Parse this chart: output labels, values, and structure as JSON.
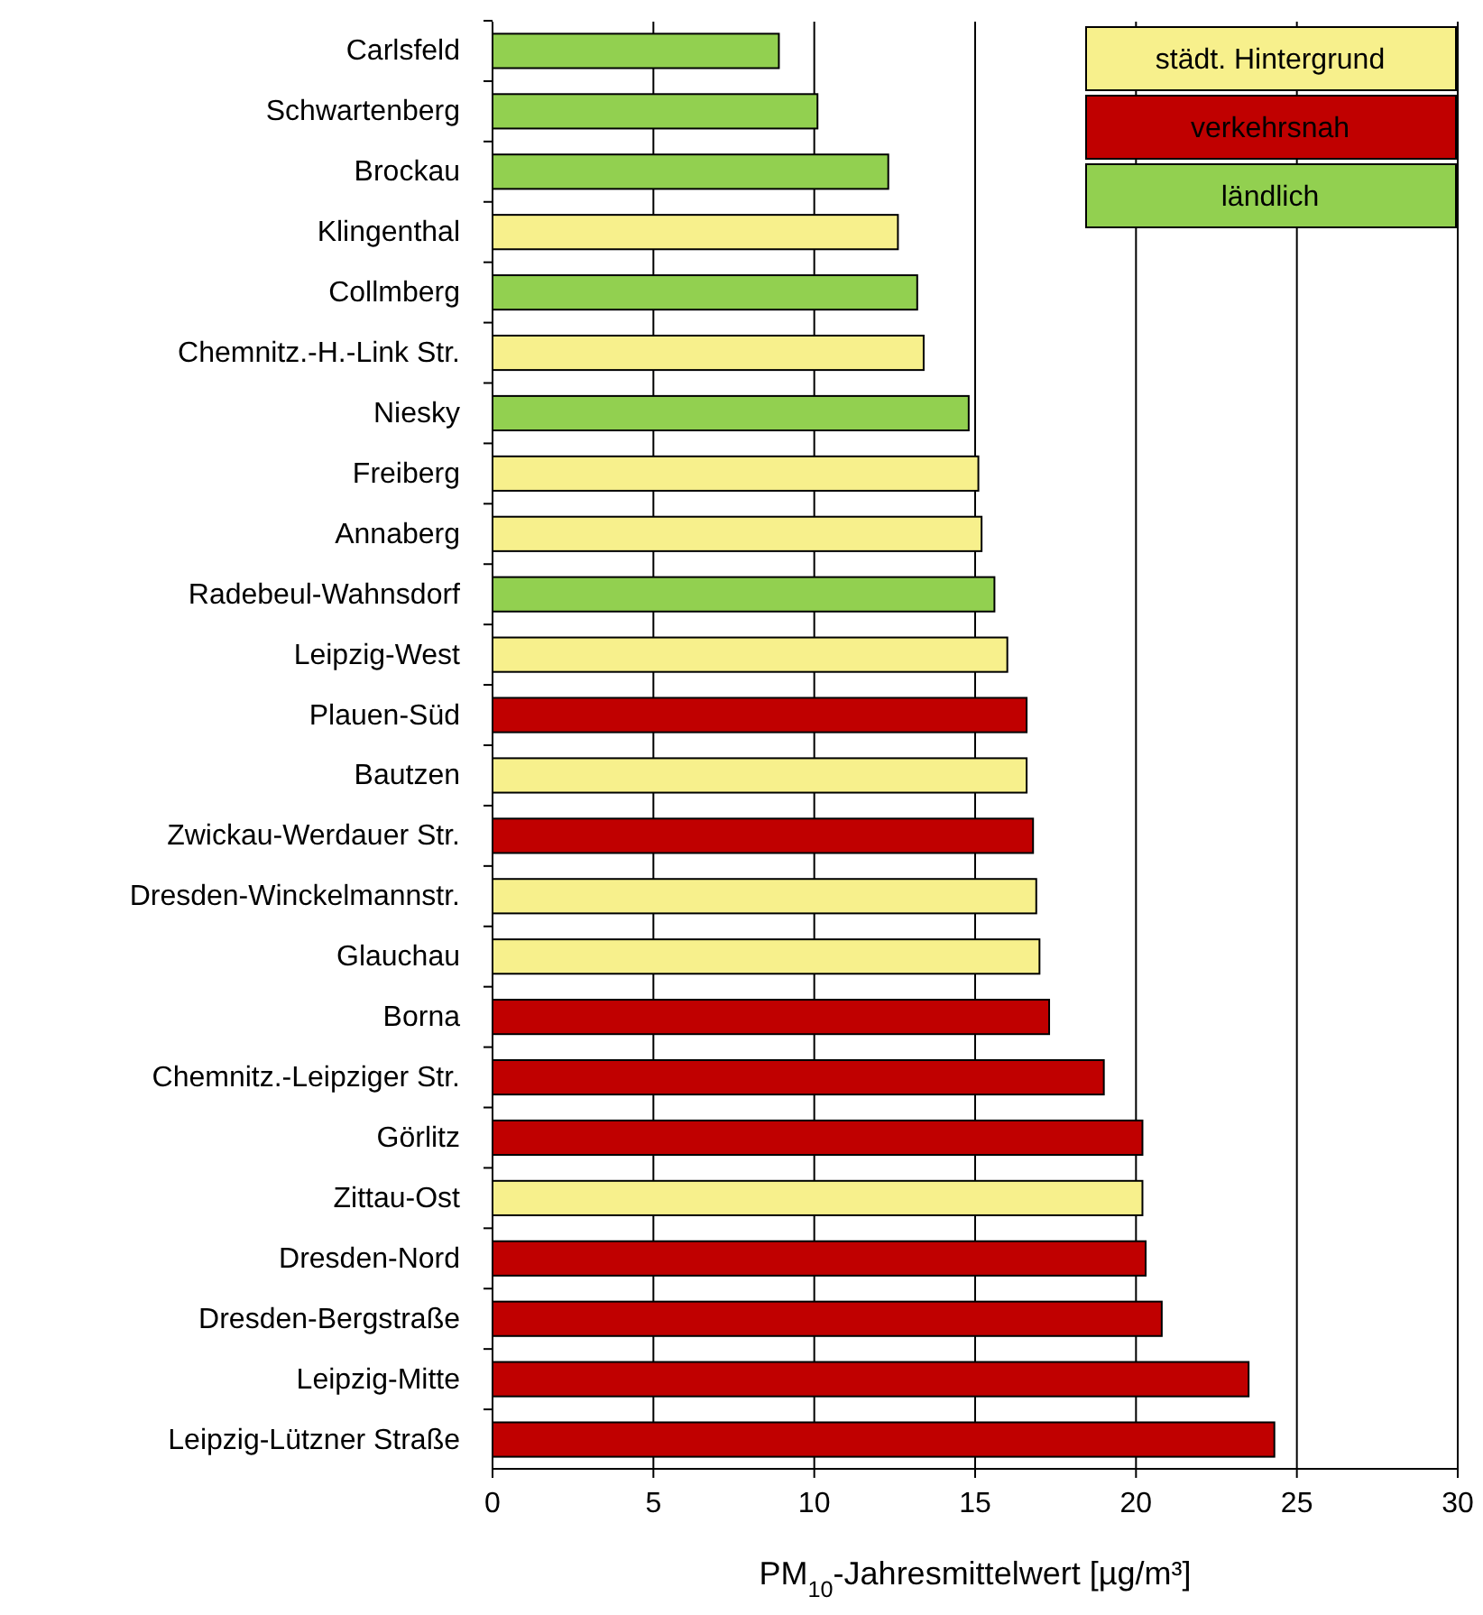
{
  "chart_data": {
    "type": "bar",
    "orientation": "horizontal",
    "stacked": true,
    "xlabel": "PM$_{10}$-Jahresmittelwert [µg/m³]",
    "categories": [
      "Carlsfeld",
      "Schwartenberg",
      "Brockau",
      "Klingenthal",
      "Collmberg",
      "Chemnitz.-H.-Link Str.",
      "Niesky",
      "Freiberg",
      "Annaberg",
      "Radebeul-Wahnsdorf",
      "Leipzig-West",
      "Plauen-Süd",
      "Bautzen",
      "Zwickau-Werdauer Str.",
      "Dresden-Winckelmannstr.",
      "Glauchau",
      "Borna",
      "Chemnitz.-Leipziger Str.",
      "Görlitz",
      "Zittau-Ost",
      "Dresden-Nord",
      "Dresden-Bergstraße",
      "Leipzig-Mitte",
      "Leipzig-Lützner Straße"
    ],
    "series": [
      {
        "name": "städt. Hintergrund",
        "color": "#f7f08c",
        "values": [
          null,
          null,
          null,
          12.6,
          null,
          13.4,
          null,
          15.1,
          15.2,
          null,
          16.0,
          null,
          16.6,
          null,
          16.9,
          17.0,
          null,
          null,
          null,
          20.2,
          null,
          null,
          null,
          null
        ]
      },
      {
        "name": "verkehrsnah",
        "color": "#c00000",
        "values": [
          null,
          null,
          null,
          null,
          null,
          null,
          null,
          null,
          null,
          null,
          null,
          16.6,
          null,
          16.8,
          null,
          null,
          17.3,
          19.0,
          20.2,
          null,
          20.3,
          20.8,
          23.5,
          24.3
        ]
      },
      {
        "name": "ländlich",
        "color": "#92d050",
        "values": [
          8.9,
          10.1,
          12.3,
          null,
          13.2,
          null,
          14.8,
          null,
          null,
          15.6,
          null,
          null,
          null,
          null,
          null,
          null,
          null,
          null,
          null,
          null,
          null,
          null,
          null,
          null
        ]
      }
    ],
    "xlim": [
      0,
      30
    ],
    "xticks": [
      0,
      5,
      10,
      15,
      20,
      25,
      30
    ],
    "grid": "x",
    "legend": "top right"
  }
}
